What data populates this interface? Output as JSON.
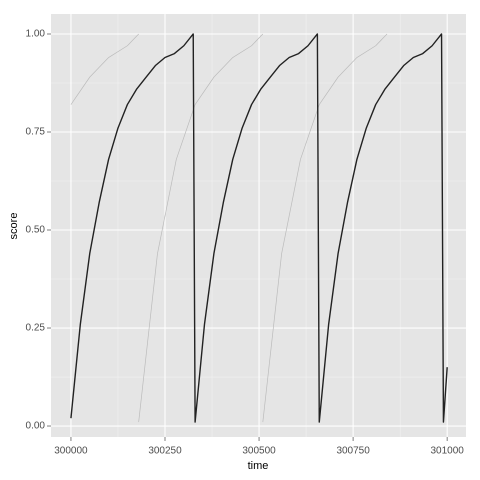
{
  "chart_data": {
    "type": "line",
    "x_label": "time",
    "y_label": "score",
    "xlim": [
      299947,
      301050
    ],
    "ylim": [
      -0.028,
      1.051
    ],
    "xticks": [
      300000,
      300250,
      300500,
      300750,
      301000
    ],
    "yticks": [
      {
        "value": 0,
        "label": "0.00"
      },
      {
        "value": 0.25,
        "label": "0.25"
      },
      {
        "value": 0.5,
        "label": "0.50"
      },
      {
        "value": 0.75,
        "label": "0.75"
      },
      {
        "value": 1,
        "label": "1.00"
      }
    ],
    "grid": true,
    "series": [
      {
        "color": "#bbbbbb",
        "x": [
          300000,
          300050,
          300100,
          300150,
          300180
        ],
        "values": [
          0.82,
          0.89,
          0.94,
          0.97,
          1.0
        ]
      },
      {
        "color": "#bbbbbb",
        "x": [
          300180,
          300230,
          300280,
          300330,
          300380,
          300430,
          300480,
          300510
        ],
        "values": [
          0.01,
          0.44,
          0.68,
          0.82,
          0.89,
          0.94,
          0.97,
          1.0
        ]
      },
      {
        "color": "#bbbbbb",
        "x": [
          300510,
          300560,
          300610,
          300660,
          300710,
          300760,
          300810,
          300840
        ],
        "values": [
          0.01,
          0.44,
          0.68,
          0.82,
          0.89,
          0.94,
          0.97,
          1.0
        ]
      },
      {
        "color": "#222222",
        "x": [
          300000,
          300025,
          300050,
          300075,
          300100,
          300125,
          300150,
          300175,
          300200,
          300225,
          300250,
          300275,
          300300,
          300325,
          300330,
          300355,
          300380,
          300405,
          300430,
          300455,
          300480,
          300505,
          300530,
          300555,
          300580,
          300605,
          300630,
          300655,
          300660,
          300685,
          300710,
          300735,
          300760,
          300785,
          300810,
          300835,
          300860,
          300885,
          300910,
          300935,
          300960,
          300985,
          300990,
          301000
        ],
        "values": [
          0.02,
          0.26,
          0.44,
          0.57,
          0.68,
          0.76,
          0.82,
          0.86,
          0.89,
          0.92,
          0.94,
          0.95,
          0.97,
          1.0,
          0.01,
          0.26,
          0.44,
          0.57,
          0.68,
          0.76,
          0.82,
          0.86,
          0.89,
          0.92,
          0.94,
          0.95,
          0.97,
          1.0,
          0.01,
          0.26,
          0.44,
          0.57,
          0.68,
          0.76,
          0.82,
          0.86,
          0.89,
          0.92,
          0.94,
          0.95,
          0.97,
          1.0,
          0.01,
          0.15
        ]
      }
    ]
  }
}
